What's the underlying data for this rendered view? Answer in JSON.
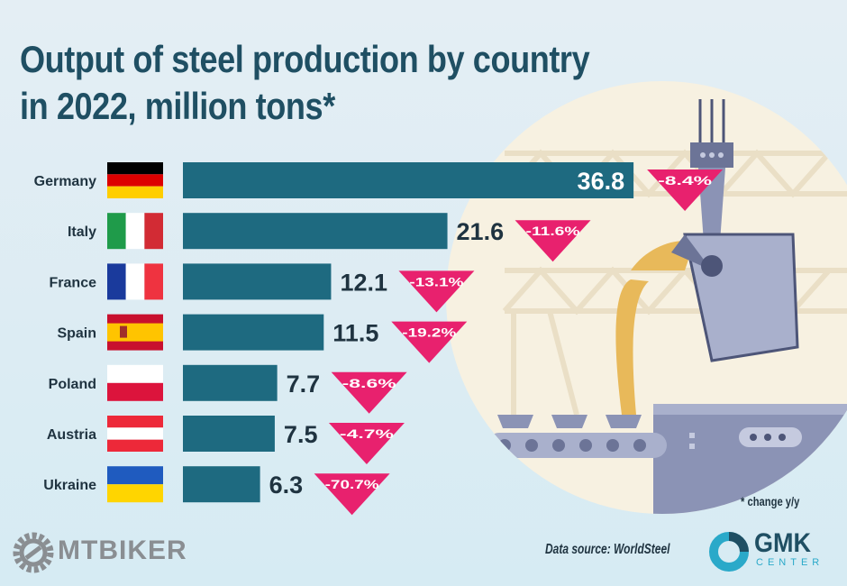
{
  "title_line1": "Output of steel production by country",
  "title_line2": "in 2022, million tons*",
  "chart_data": {
    "type": "bar",
    "orientation": "horizontal",
    "title": "Output of steel production by country in 2022, million tons*",
    "categories": [
      "Germany",
      "Italy",
      "France",
      "Spain",
      "Poland",
      "Austria",
      "Ukraine"
    ],
    "values": [
      36.8,
      21.6,
      12.1,
      11.5,
      7.7,
      7.5,
      6.3
    ],
    "change_labels": [
      "-8.4%",
      "-11.6%",
      "-13.1%",
      "-19.2%",
      "-8.6%",
      "-4.7%",
      "-70.7%"
    ],
    "value_labels": [
      "36.8",
      "21.6",
      "12.1",
      "11.5",
      "7.7",
      "7.5",
      "6.3"
    ],
    "bar_color": "#1e6a80",
    "change_color": "#e8216e",
    "flags": {
      "Germany": [
        "#000000",
        "#dd0000",
        "#ffce00"
      ],
      "Italy": [
        "#1f9b4a",
        "#ffffff",
        "#d22b34"
      ],
      "France": [
        "#1a3a9c",
        "#ffffff",
        "#ef3340"
      ],
      "Spain": [
        "#c8102e",
        "#ffc400",
        "#c8102e"
      ],
      "Poland": [
        "#ffffff",
        "#dc143c"
      ],
      "Austria": [
        "#ed2939",
        "#ffffff",
        "#ed2939"
      ],
      "Ukraine": [
        "#1f5bbf",
        "#ffd500"
      ]
    }
  },
  "footnote": "* change y/y",
  "source": "Data source: WorldSteel",
  "brand": {
    "name": "GMK",
    "sub": "CENTER",
    "color": "#1f4f63",
    "accent": "#2aa9c9"
  },
  "watermark": "MTBIKER"
}
